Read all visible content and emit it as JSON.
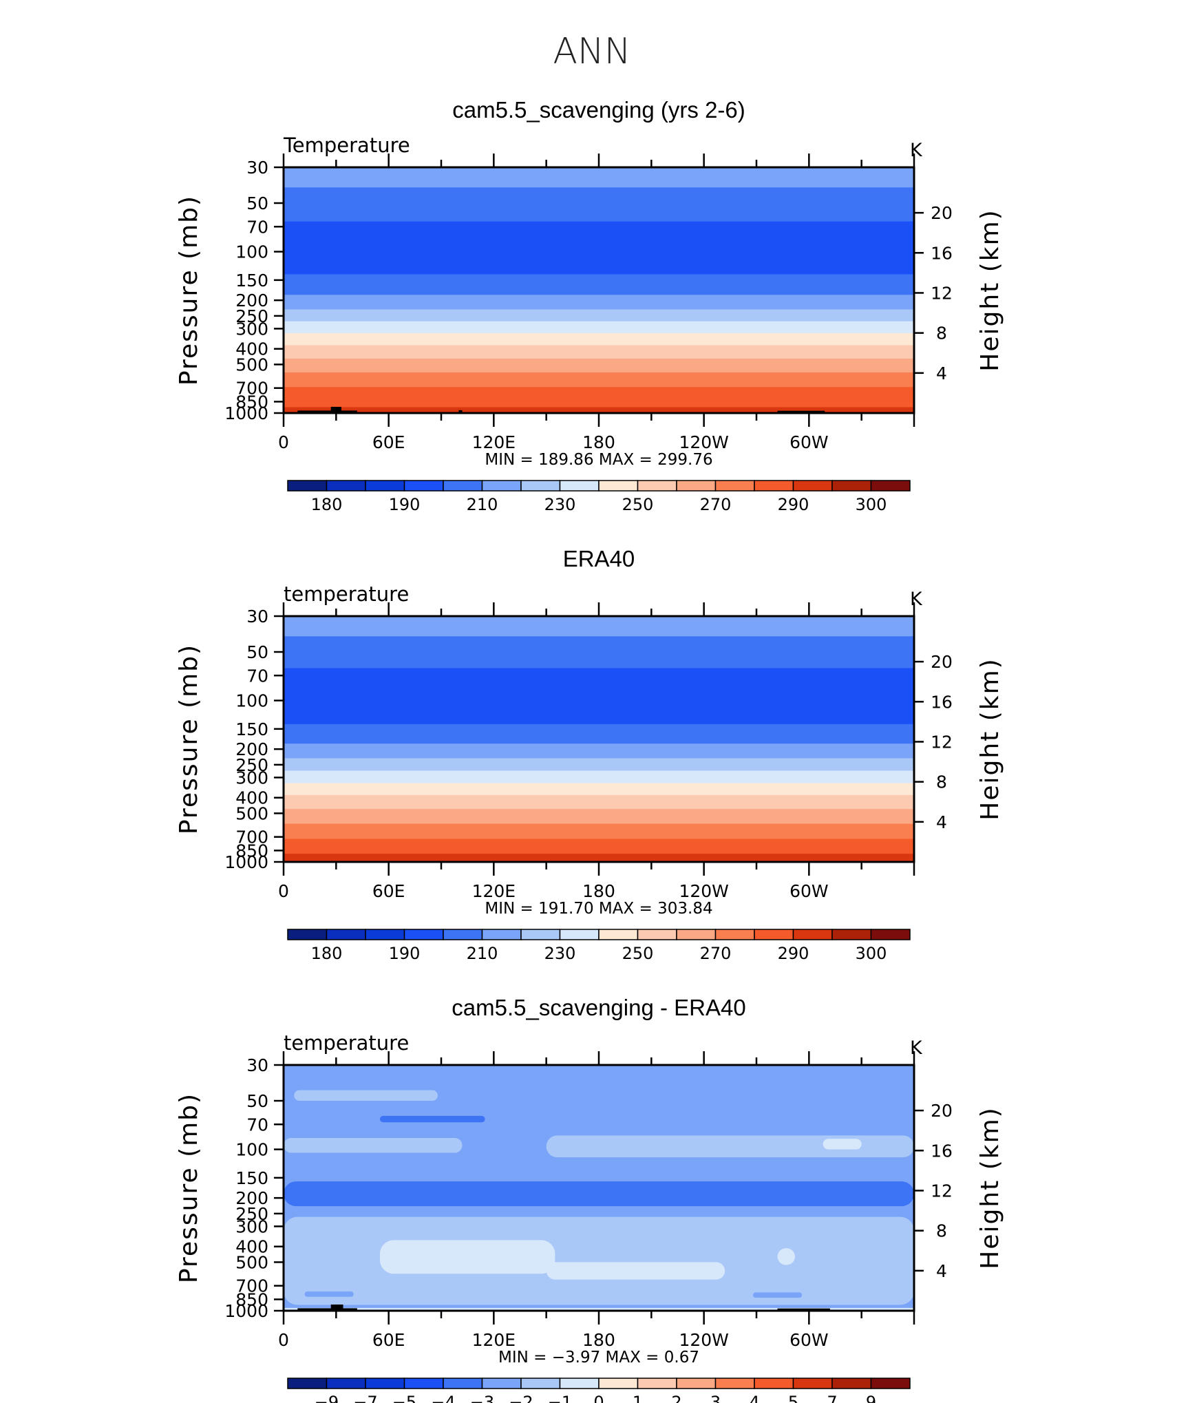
{
  "page_title": "ANN",
  "shared": {
    "left_axis_label": "Pressure (mb)",
    "right_axis_label": "Height (km)",
    "pressure_ticks": [
      "30",
      "50",
      "70",
      "100",
      "150",
      "200",
      "250",
      "300",
      "400",
      "500",
      "700",
      "850",
      "1000"
    ],
    "height_ticks": [
      "20",
      "16",
      "12",
      "8",
      "4"
    ],
    "lon_ticks": [
      "0",
      "60E",
      "120E",
      "180",
      "120W",
      "60W"
    ],
    "min_label": "MIN",
    "max_label": "MAX",
    "equals": "=",
    "land_color": "#000000"
  },
  "chart_data": [
    {
      "type": "heatmap",
      "title": "cam5.5_scavenging (yrs 2-6)",
      "variable_label": "Temperature",
      "units": "K",
      "xlabel": "",
      "ylabel": "Pressure (mb)",
      "y2label": "Height (km)",
      "x_range": [
        0,
        360
      ],
      "y_range_mb": [
        30,
        1000
      ],
      "y_scale": "log-pressure",
      "min": "189.86",
      "max": "299.76",
      "colorbar": {
        "labels": [
          "180",
          "190",
          "210",
          "230",
          "250",
          "270",
          "290",
          "300"
        ],
        "colors": [
          "#0a1e80",
          "#0a2ebe",
          "#0b3cd9",
          "#1a50f5",
          "#3d74f5",
          "#7aa4f7",
          "#a9c8f8",
          "#d8e8fb",
          "#fde8d4",
          "#fccab0",
          "#fba884",
          "#f97f50",
          "#f45a2a",
          "#d8370f",
          "#ac2208",
          "#7c0d0d"
        ]
      },
      "bands": [
        {
          "p": [
            30,
            40
          ],
          "color": "#7aa4f7"
        },
        {
          "p": [
            40,
            65
          ],
          "color": "#3d74f5"
        },
        {
          "p": [
            65,
            138
          ],
          "color": "#1a50f5"
        },
        {
          "p": [
            138,
            185
          ],
          "color": "#3d74f5"
        },
        {
          "p": [
            185,
            228
          ],
          "color": "#7aa4f7"
        },
        {
          "p": [
            228,
            270
          ],
          "color": "#a9c8f8"
        },
        {
          "p": [
            270,
            320
          ],
          "color": "#d8e8fb"
        },
        {
          "p": [
            320,
            380
          ],
          "color": "#fde8d4"
        },
        {
          "p": [
            380,
            460
          ],
          "color": "#fccab0"
        },
        {
          "p": [
            460,
            560
          ],
          "color": "#fba884"
        },
        {
          "p": [
            560,
            690
          ],
          "color": "#f97f50"
        },
        {
          "p": [
            690,
            920
          ],
          "color": "#f45a2a"
        },
        {
          "p": [
            920,
            1000
          ],
          "color": "#d8370f"
        }
      ],
      "land": [
        {
          "lon": [
            8,
            42
          ],
          "p": [
            965,
            1000
          ]
        },
        {
          "lon": [
            27,
            33
          ],
          "p": [
            915,
            1000
          ]
        },
        {
          "lon": [
            100,
            102
          ],
          "p": [
            960,
            1000
          ]
        },
        {
          "lon": [
            282,
            309
          ],
          "p": [
            968,
            1000
          ]
        }
      ]
    },
    {
      "type": "heatmap",
      "title": "ERA40",
      "variable_label": "temperature",
      "units": "K",
      "xlabel": "",
      "ylabel": "Pressure (mb)",
      "y2label": "Height (km)",
      "x_range": [
        0,
        360
      ],
      "y_range_mb": [
        30,
        1000
      ],
      "y_scale": "log-pressure",
      "min": "191.70",
      "max": "303.84",
      "colorbar": {
        "labels": [
          "180",
          "190",
          "210",
          "230",
          "250",
          "270",
          "290",
          "300"
        ],
        "colors": [
          "#0a1e80",
          "#0a2ebe",
          "#0b3cd9",
          "#1a50f5",
          "#3d74f5",
          "#7aa4f7",
          "#a9c8f8",
          "#d8e8fb",
          "#fde8d4",
          "#fccab0",
          "#fba884",
          "#f97f50",
          "#f45a2a",
          "#d8370f",
          "#ac2208",
          "#7c0d0d"
        ]
      },
      "bands": [
        {
          "p": [
            30,
            40
          ],
          "color": "#7aa4f7"
        },
        {
          "p": [
            40,
            63
          ],
          "color": "#3d74f5"
        },
        {
          "p": [
            63,
            140
          ],
          "color": "#1a50f5"
        },
        {
          "p": [
            140,
            185
          ],
          "color": "#3d74f5"
        },
        {
          "p": [
            185,
            228
          ],
          "color": "#7aa4f7"
        },
        {
          "p": [
            228,
            272
          ],
          "color": "#a9c8f8"
        },
        {
          "p": [
            272,
            325
          ],
          "color": "#d8e8fb"
        },
        {
          "p": [
            325,
            385
          ],
          "color": "#fde8d4"
        },
        {
          "p": [
            385,
            470
          ],
          "color": "#fccab0"
        },
        {
          "p": [
            470,
            580
          ],
          "color": "#fba884"
        },
        {
          "p": [
            580,
            720
          ],
          "color": "#f97f50"
        },
        {
          "p": [
            720,
            890
          ],
          "color": "#f45a2a"
        },
        {
          "p": [
            890,
            1000
          ],
          "color": "#d8370f"
        }
      ],
      "land": []
    },
    {
      "type": "heatmap",
      "title": "cam5.5_scavenging - ERA40",
      "variable_label": "temperature",
      "units": "K",
      "xlabel": "",
      "ylabel": "Pressure (mb)",
      "y2label": "Height (km)",
      "x_range": [
        0,
        360
      ],
      "y_range_mb": [
        30,
        1000
      ],
      "y_scale": "log-pressure",
      "min": "−3.97",
      "max": "0.67",
      "colorbar": {
        "labels": [
          "−9",
          "−7",
          "−5",
          "−4",
          "−3",
          "−2",
          "−1",
          "0",
          "1",
          "2",
          "3",
          "4",
          "5",
          "7",
          "9"
        ],
        "colors": [
          "#0a1e80",
          "#0a2ebe",
          "#0b3cd9",
          "#1a50f5",
          "#3d74f5",
          "#7aa4f7",
          "#a9c8f8",
          "#d8e8fb",
          "#fde8d4",
          "#fccab0",
          "#fba884",
          "#f97f50",
          "#f45a2a",
          "#d8370f",
          "#ac2208",
          "#7c0d0d"
        ]
      },
      "bands": [
        {
          "p": [
            30,
            1000
          ],
          "color": "#7aa4f7"
        }
      ],
      "blobs": [
        {
          "lon": [
            6,
            88
          ],
          "p": [
            43,
            50
          ],
          "color": "#a9c8f8"
        },
        {
          "lon": [
            55,
            115
          ],
          "p": [
            62,
            68
          ],
          "color": "#3d74f5"
        },
        {
          "lon": [
            0,
            102
          ],
          "p": [
            85,
            105
          ],
          "color": "#a9c8f8"
        },
        {
          "lon": [
            150,
            360
          ],
          "p": [
            82,
            112
          ],
          "color": "#a9c8f8"
        },
        {
          "lon": [
            308,
            330
          ],
          "p": [
            86,
            100
          ],
          "color": "#d8e8fb"
        },
        {
          "lon": [
            0,
            360
          ],
          "p": [
            158,
            225
          ],
          "color": "#3d74f5"
        },
        {
          "lon": [
            0,
            360
          ],
          "p": [
            262,
            920
          ],
          "color": "#a9c8f8"
        },
        {
          "lon": [
            55,
            155
          ],
          "p": [
            365,
            590
          ],
          "color": "#d8e8fb"
        },
        {
          "lon": [
            150,
            252
          ],
          "p": [
            500,
            640
          ],
          "color": "#d8e8fb"
        },
        {
          "lon": [
            282,
            292
          ],
          "p": [
            410,
            520
          ],
          "color": "#d8e8fb"
        },
        {
          "lon": [
            12,
            40
          ],
          "p": [
            760,
            820
          ],
          "color": "#7aa4f7"
        },
        {
          "lon": [
            268,
            296
          ],
          "p": [
            770,
            830
          ],
          "color": "#7aa4f7"
        },
        {
          "lon": [
            0,
            360
          ],
          "p": [
            960,
            1000
          ],
          "color": "#d8e8fb"
        }
      ],
      "land": [
        {
          "lon": [
            8,
            42
          ],
          "p": [
            965,
            1000
          ]
        },
        {
          "lon": [
            27,
            34
          ],
          "p": [
            915,
            1000
          ]
        },
        {
          "lon": [
            282,
            312
          ],
          "p": [
            968,
            1000
          ]
        }
      ]
    }
  ]
}
